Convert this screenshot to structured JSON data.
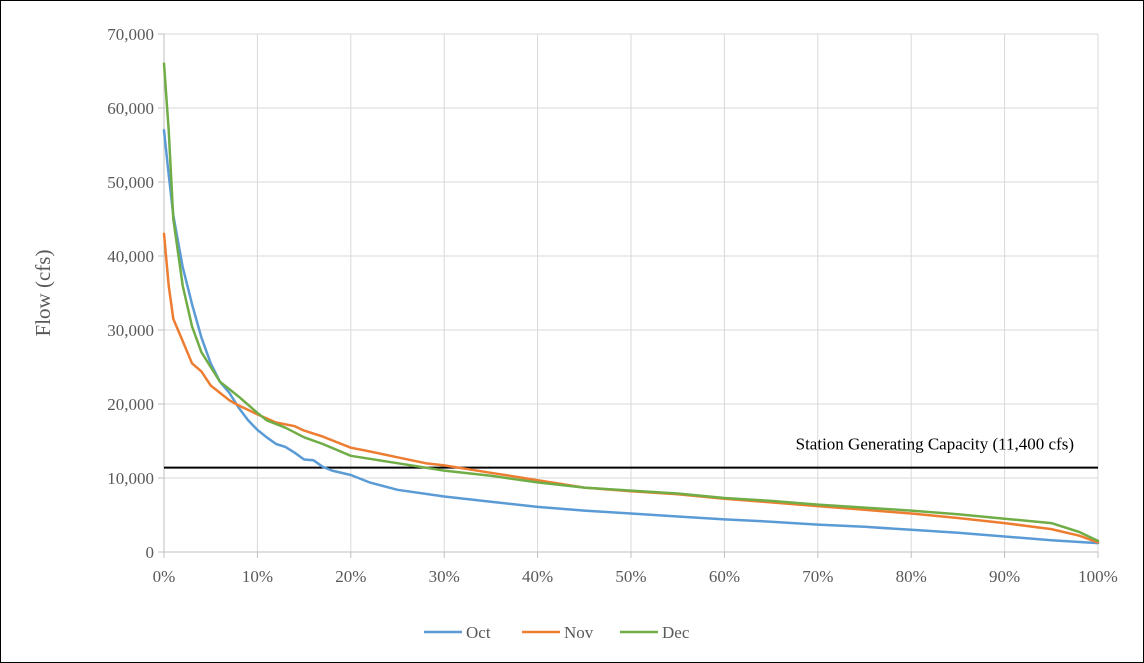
{
  "chart_data": {
    "type": "line",
    "title": "",
    "xlabel": "",
    "ylabel": "Flow (cfs)",
    "xlim": [
      0,
      100
    ],
    "ylim": [
      0,
      70000
    ],
    "grid": true,
    "legend_position": "bottom",
    "x_ticks": [
      {
        "value": 0,
        "label": "0%"
      },
      {
        "value": 10,
        "label": "10%"
      },
      {
        "value": 20,
        "label": "20%"
      },
      {
        "value": 30,
        "label": "30%"
      },
      {
        "value": 40,
        "label": "40%"
      },
      {
        "value": 50,
        "label": "50%"
      },
      {
        "value": 60,
        "label": "60%"
      },
      {
        "value": 70,
        "label": "70%"
      },
      {
        "value": 80,
        "label": "80%"
      },
      {
        "value": 90,
        "label": "90%"
      },
      {
        "value": 100,
        "label": "100%"
      }
    ],
    "y_ticks": [
      {
        "value": 0,
        "label": "0"
      },
      {
        "value": 10000,
        "label": "10,000"
      },
      {
        "value": 20000,
        "label": "20,000"
      },
      {
        "value": 30000,
        "label": "30,000"
      },
      {
        "value": 40000,
        "label": "40,000"
      },
      {
        "value": 50000,
        "label": "50,000"
      },
      {
        "value": 60000,
        "label": "60,000"
      },
      {
        "value": 70000,
        "label": "70,000"
      }
    ],
    "reference_line": {
      "value": 11400,
      "label": "Station Generating Capacity (11,400 cfs)",
      "color": "#000000"
    },
    "series": [
      {
        "name": "Oct",
        "color": "#5B9BD5",
        "points": [
          [
            0,
            57000
          ],
          [
            0.5,
            51000
          ],
          [
            1,
            45500
          ],
          [
            2,
            38500
          ],
          [
            3,
            33500
          ],
          [
            4,
            29000
          ],
          [
            5,
            25500
          ],
          [
            6,
            23000
          ],
          [
            7,
            21500
          ],
          [
            8,
            19500
          ],
          [
            9,
            17800
          ],
          [
            10,
            16500
          ],
          [
            11,
            15500
          ],
          [
            12,
            14600
          ],
          [
            13,
            14200
          ],
          [
            14,
            13400
          ],
          [
            15,
            12500
          ],
          [
            16,
            12400
          ],
          [
            17,
            11500
          ],
          [
            18,
            11000
          ],
          [
            20,
            10400
          ],
          [
            22,
            9400
          ],
          [
            25,
            8400
          ],
          [
            30,
            7500
          ],
          [
            35,
            6800
          ],
          [
            40,
            6100
          ],
          [
            45,
            5600
          ],
          [
            50,
            5200
          ],
          [
            55,
            4800
          ],
          [
            60,
            4400
          ],
          [
            65,
            4100
          ],
          [
            70,
            3700
          ],
          [
            75,
            3400
          ],
          [
            80,
            3000
          ],
          [
            85,
            2600
          ],
          [
            90,
            2100
          ],
          [
            95,
            1600
          ],
          [
            100,
            1200
          ]
        ]
      },
      {
        "name": "Nov",
        "color": "#ED7D31",
        "points": [
          [
            0,
            43000
          ],
          [
            0.5,
            36000
          ],
          [
            1,
            31500
          ],
          [
            2,
            28500
          ],
          [
            3,
            25500
          ],
          [
            4,
            24400
          ],
          [
            5,
            22500
          ],
          [
            6,
            21500
          ],
          [
            7,
            20500
          ],
          [
            8,
            19800
          ],
          [
            9,
            19200
          ],
          [
            10,
            18600
          ],
          [
            12,
            17500
          ],
          [
            14,
            17000
          ],
          [
            15,
            16400
          ],
          [
            17,
            15600
          ],
          [
            20,
            14100
          ],
          [
            22,
            13600
          ],
          [
            25,
            12800
          ],
          [
            28,
            12000
          ],
          [
            30,
            11700
          ],
          [
            35,
            10700
          ],
          [
            40,
            9700
          ],
          [
            45,
            8700
          ],
          [
            50,
            8200
          ],
          [
            55,
            7800
          ],
          [
            60,
            7200
          ],
          [
            65,
            6700
          ],
          [
            70,
            6200
          ],
          [
            75,
            5700
          ],
          [
            80,
            5200
          ],
          [
            85,
            4600
          ],
          [
            90,
            3900
          ],
          [
            95,
            3100
          ],
          [
            98,
            2200
          ],
          [
            100,
            1300
          ]
        ]
      },
      {
        "name": "Dec",
        "color": "#70AD47",
        "points": [
          [
            0,
            66000
          ],
          [
            0.5,
            57000
          ],
          [
            1,
            45000
          ],
          [
            2,
            36000
          ],
          [
            3,
            30500
          ],
          [
            4,
            27000
          ],
          [
            5,
            25000
          ],
          [
            6,
            23000
          ],
          [
            7,
            22000
          ],
          [
            8,
            21000
          ],
          [
            10,
            18800
          ],
          [
            11,
            17800
          ],
          [
            13,
            16800
          ],
          [
            15,
            15500
          ],
          [
            17,
            14600
          ],
          [
            20,
            13000
          ],
          [
            25,
            12000
          ],
          [
            30,
            11000
          ],
          [
            35,
            10300
          ],
          [
            40,
            9400
          ],
          [
            45,
            8700
          ],
          [
            50,
            8300
          ],
          [
            55,
            7900
          ],
          [
            60,
            7300
          ],
          [
            65,
            6900
          ],
          [
            70,
            6400
          ],
          [
            75,
            6000
          ],
          [
            80,
            5600
          ],
          [
            85,
            5100
          ],
          [
            90,
            4500
          ],
          [
            95,
            3900
          ],
          [
            98,
            2700
          ],
          [
            100,
            1500
          ]
        ]
      }
    ]
  }
}
